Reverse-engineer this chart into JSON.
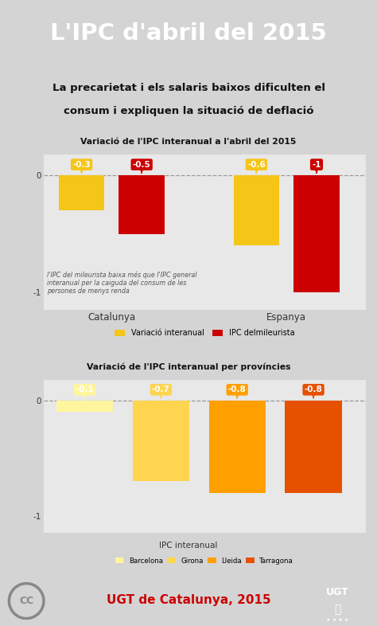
{
  "title": "L'IPC d'abril del 2015",
  "subtitle_line1": "La precarietat i els salaris baixos dificulten el",
  "subtitle_line2": "consum i expliquen la situació de deflació",
  "chart1_title": "Variació de l'IPC interanual a l'abril del 2015",
  "chart1_labels": [
    "Catalunya",
    "Espanya"
  ],
  "chart1_values": [
    -0.3,
    -0.5,
    -0.6,
    -1.0
  ],
  "chart1_colors": [
    "#F5C518",
    "#CC0000",
    "#F5C518",
    "#CC0000"
  ],
  "chart1_bar_labels": [
    "-0.3",
    "-0.5",
    "-0.6",
    "-1"
  ],
  "chart1_note": "l'IPC del mileurista baixa més que l'IPC general\ninteranual per la caiguda del consum de les\npersones de menys renda",
  "chart1_legend": [
    "Variació interanual",
    "IPC delmileurista"
  ],
  "chart1_legend_colors": [
    "#F5C518",
    "#CC0000"
  ],
  "chart1_ylim": [
    -1.15,
    0.18
  ],
  "chart2_title": "Variació de l'IPC interanual per províncies",
  "chart2_categories": [
    "Barcelona",
    "Girona",
    "Lleida",
    "Tarragona"
  ],
  "chart2_values": [
    -0.1,
    -0.7,
    -0.8,
    -0.8
  ],
  "chart2_colors": [
    "#FFF59D",
    "#FFD54F",
    "#FFA000",
    "#E65100"
  ],
  "chart2_bar_labels": [
    "-0.1",
    "-0.7",
    "-0.8",
    "-0.8"
  ],
  "chart2_xlabel": "IPC interanual",
  "chart2_ylim": [
    -1.15,
    0.18
  ],
  "footer_text": "UGT de Catalunya, 2015",
  "title_bg": "#111111",
  "subtitle_bg": "#d4d4d4",
  "chart_bg": "#d4d4d4",
  "footer_bg": "#b8b8b8"
}
